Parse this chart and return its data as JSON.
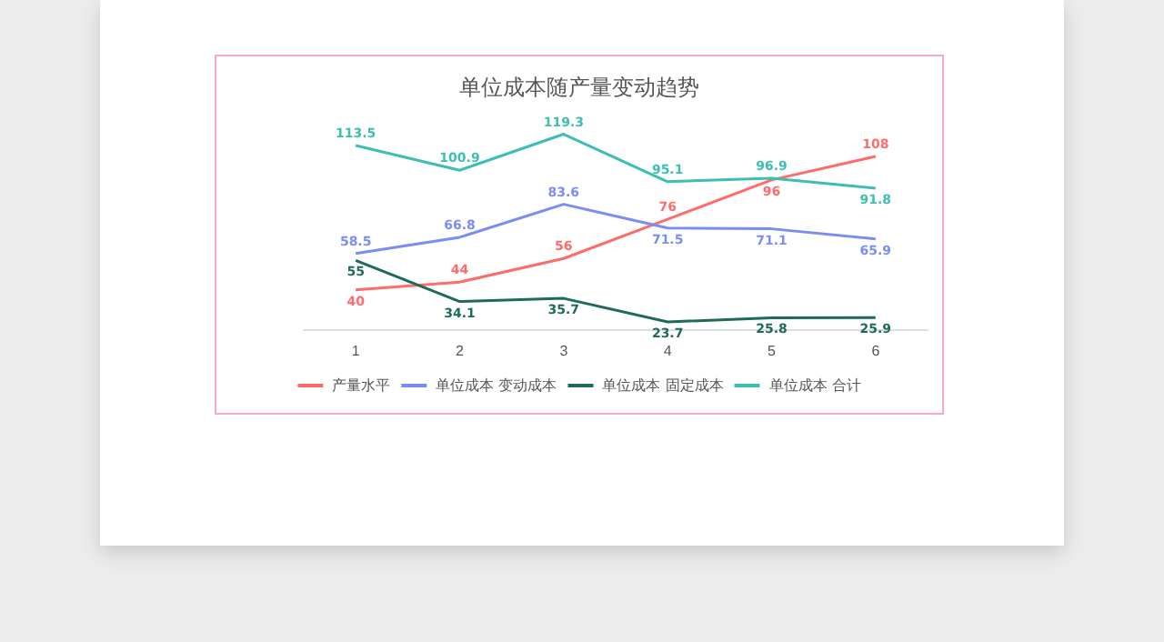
{
  "chart_data": {
    "type": "line",
    "title": "单位成本随产量变动趋势",
    "categories": [
      "1",
      "2",
      "3",
      "4",
      "5",
      "6"
    ],
    "series": [
      {
        "name": "产量水平",
        "color": "#ff6b6b",
        "values": [
          40,
          44,
          56,
          76,
          96,
          108
        ]
      },
      {
        "name": "单位成本 变动成本",
        "color": "#7b8cf5",
        "values": [
          58.5,
          66.8,
          83.6,
          71.5,
          71.1,
          65.9
        ]
      },
      {
        "name": "单位成本 固定成本",
        "color": "#1e6b5c",
        "values": [
          55.0,
          34.1,
          35.7,
          23.7,
          25.8,
          25.9
        ]
      },
      {
        "name": "单位成本 合计",
        "color": "#3cbfb0",
        "values": [
          113.5,
          100.9,
          119.3,
          95.1,
          96.9,
          91.8
        ]
      }
    ],
    "data_labels": true,
    "legend": "bottom",
    "grid": false,
    "marker": "none",
    "line_style": "solid",
    "tick_labels": "x"
  }
}
